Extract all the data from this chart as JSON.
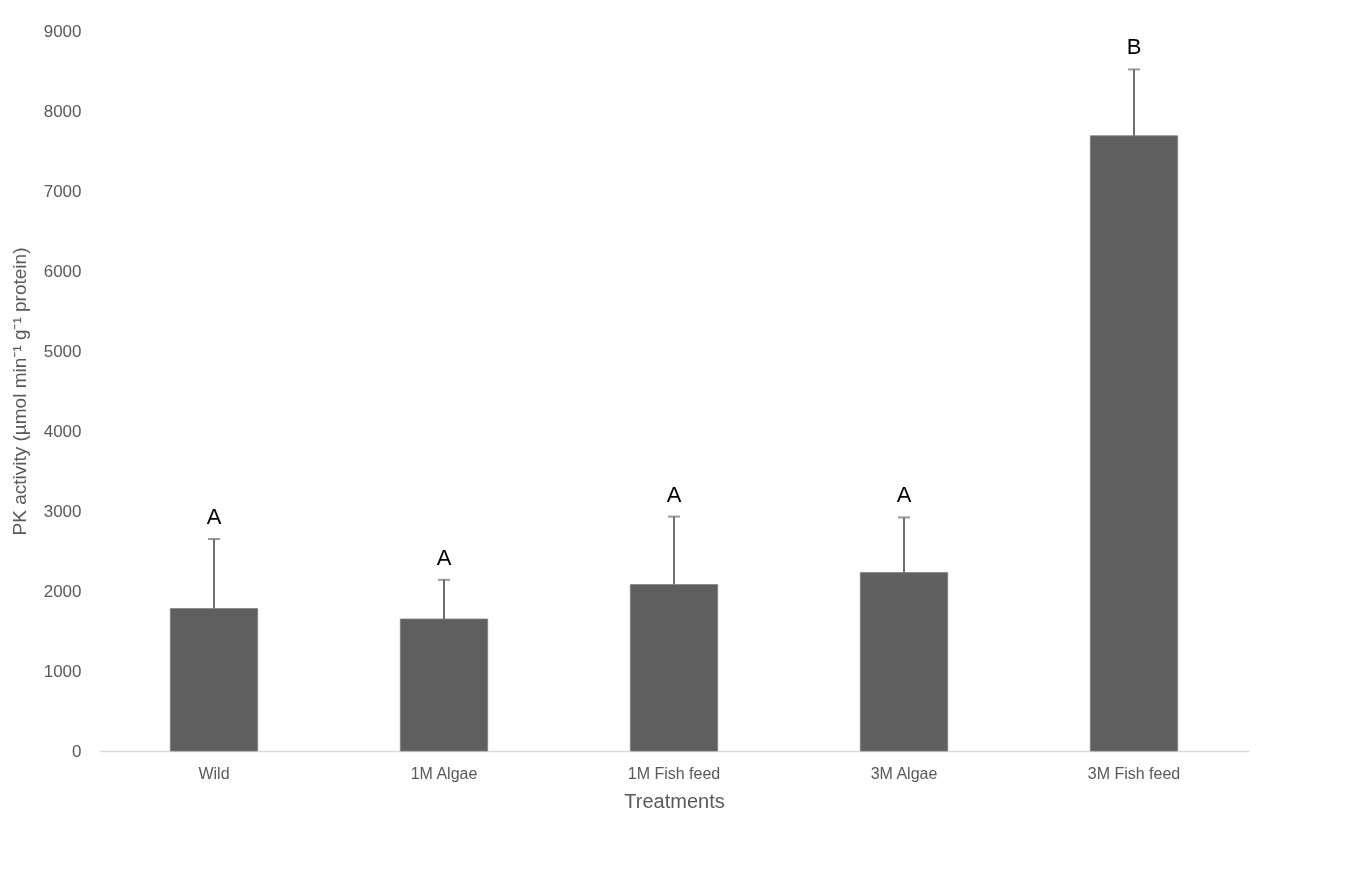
{
  "chart_data": {
    "type": "bar",
    "xlabel": "Treatments",
    "ylabel": "PK  activity (µmol min⁻¹ g⁻¹ protein)",
    "categories": [
      "Wild",
      "1M Algae",
      "1M Fish feed",
      "3M Algae",
      "3M Fish feed"
    ],
    "values": [
      1780,
      1650,
      2080,
      2230,
      7690
    ],
    "errors": [
      [
        1780,
        2650
      ],
      [
        1650,
        2140
      ],
      [
        2080,
        2930
      ],
      [
        2230,
        2920
      ],
      [
        7690,
        8520
      ]
    ],
    "color": "#5f5f5f",
    "ylim": [
      0,
      9000
    ],
    "yticks": [
      0,
      1000,
      2000,
      3000,
      4000,
      5000,
      6000,
      7000,
      8000,
      9000
    ],
    "grid": false,
    "annotations": [
      "A",
      "A",
      "A",
      "A",
      "B"
    ]
  }
}
